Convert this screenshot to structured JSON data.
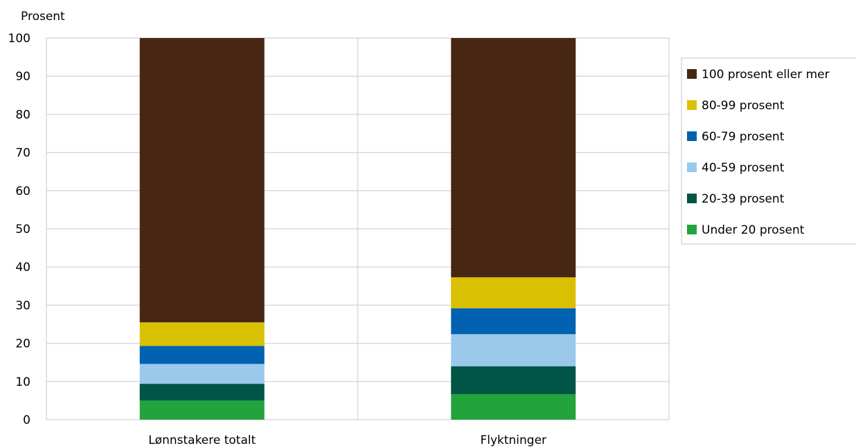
{
  "chart_data": {
    "type": "bar",
    "stacked": true,
    "ylabel": "Prosent",
    "ylim": [
      0,
      100
    ],
    "yticks": [
      0,
      10,
      20,
      30,
      40,
      50,
      60,
      70,
      80,
      90,
      100
    ],
    "grid": true,
    "legend_position": "right",
    "categories": [
      "Lønnstakere totalt",
      "Flyktninger"
    ],
    "series": [
      {
        "name": "Under 20 prosent",
        "color": "#22a33c",
        "values": [
          5.0,
          6.7
        ]
      },
      {
        "name": "20-39 prosent",
        "color": "#005546",
        "values": [
          4.4,
          7.3
        ]
      },
      {
        "name": "40-59 prosent",
        "color": "#9ac9ec",
        "values": [
          5.2,
          8.4
        ]
      },
      {
        "name": "60-79 prosent",
        "color": "#0062b0",
        "values": [
          4.7,
          6.8
        ]
      },
      {
        "name": "80-99 prosent",
        "color": "#d9c000",
        "values": [
          6.2,
          8.1
        ]
      },
      {
        "name": "100 prosent eller mer",
        "color": "#472713",
        "values": [
          74.5,
          62.7
        ]
      }
    ]
  }
}
